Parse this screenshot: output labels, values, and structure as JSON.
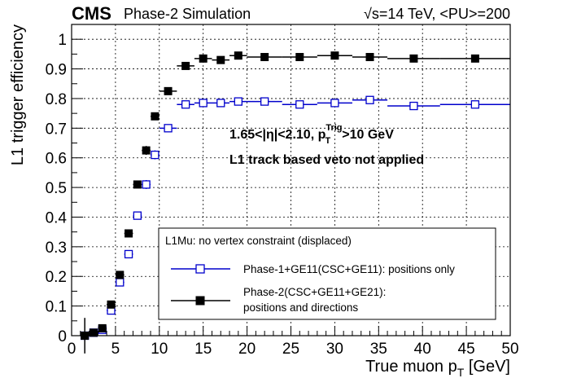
{
  "header": {
    "experiment": "CMS",
    "status": "Phase-2 Simulation",
    "energy": "√s=14 TeV, <PU>=200"
  },
  "annotations": {
    "line1_prefix": "1.65<|η|<2.10, p",
    "line1_sub": "T",
    "line1_sup": "Trig",
    "line1_suffix": ">10 GeV",
    "line2": "L1 track based veto not applied"
  },
  "legend": {
    "header": "L1Mu: no vertex constraint (displaced)",
    "entry1": "Phase-1+GE11(CSC+GE11): positions only",
    "entry2_line1": "Phase-2(CSC+GE11+GE21):",
    "entry2_line2": "positions and directions"
  },
  "chart_data": {
    "type": "scatter",
    "xlabel_main": "True muon p",
    "xlabel_sub": "T",
    "xlabel_unit": " [GeV]",
    "ylabel": "L1 trigger efficiency",
    "xlim": [
      0,
      50
    ],
    "ylim": [
      0,
      1.05
    ],
    "x_ticks": [
      0,
      5,
      10,
      15,
      20,
      25,
      30,
      35,
      40,
      45,
      50
    ],
    "y_ticks": [
      0,
      0.1,
      0.2,
      0.3,
      0.4,
      0.5,
      0.6,
      0.7,
      0.8,
      0.9,
      1
    ],
    "y_tick_labels": [
      "0",
      "0.1",
      "0.2",
      "0.3",
      "0.4",
      "0.5",
      "0.6",
      "0.7",
      "0.8",
      "0.9",
      "1"
    ],
    "grid": true,
    "legend_position": "bottom-right",
    "series": [
      {
        "name": "Phase-1+GE11(CSC+GE11): positions only",
        "color": "#0000cc",
        "marker": "open-square",
        "points": [
          {
            "x": 1.5,
            "y": 0.0,
            "xerr": 0.5,
            "yerr": 0.01
          },
          {
            "x": 2.5,
            "y": 0.01,
            "xerr": 0.5,
            "yerr": 0.01
          },
          {
            "x": 3.5,
            "y": 0.02,
            "xerr": 0.5,
            "yerr": 0.01
          },
          {
            "x": 4.5,
            "y": 0.085,
            "xerr": 0.5,
            "yerr": 0.01
          },
          {
            "x": 5.5,
            "y": 0.18,
            "xerr": 0.5,
            "yerr": 0.012
          },
          {
            "x": 6.5,
            "y": 0.275,
            "xerr": 0.5,
            "yerr": 0.012
          },
          {
            "x": 7.5,
            "y": 0.405,
            "xerr": 0.5,
            "yerr": 0.012
          },
          {
            "x": 8.5,
            "y": 0.51,
            "xerr": 0.5,
            "yerr": 0.015
          },
          {
            "x": 9.5,
            "y": 0.61,
            "xerr": 0.5,
            "yerr": 0.015
          },
          {
            "x": 11,
            "y": 0.7,
            "xerr": 1,
            "yerr": 0.01
          },
          {
            "x": 13,
            "y": 0.78,
            "xerr": 1,
            "yerr": 0.01
          },
          {
            "x": 15,
            "y": 0.785,
            "xerr": 1,
            "yerr": 0.01
          },
          {
            "x": 17,
            "y": 0.785,
            "xerr": 1,
            "yerr": 0.01
          },
          {
            "x": 19,
            "y": 0.79,
            "xerr": 1,
            "yerr": 0.01
          },
          {
            "x": 22,
            "y": 0.79,
            "xerr": 2,
            "yerr": 0.01
          },
          {
            "x": 26,
            "y": 0.78,
            "xerr": 2,
            "yerr": 0.01
          },
          {
            "x": 30,
            "y": 0.785,
            "xerr": 2,
            "yerr": 0.01
          },
          {
            "x": 34,
            "y": 0.795,
            "xerr": 2,
            "yerr": 0.01
          },
          {
            "x": 39,
            "y": 0.775,
            "xerr": 3,
            "yerr": 0.01
          },
          {
            "x": 46,
            "y": 0.78,
            "xerr": 4,
            "yerr": 0.01
          }
        ]
      },
      {
        "name": "Phase-2(CSC+GE11+GE21): positions and directions",
        "color": "#000000",
        "marker": "filled-square",
        "points": [
          {
            "x": 1.5,
            "y": 0.0,
            "xerr": 0.5,
            "yerr": 0.06
          },
          {
            "x": 2.5,
            "y": 0.01,
            "xerr": 0.5,
            "yerr": 0.01
          },
          {
            "x": 3.5,
            "y": 0.025,
            "xerr": 0.5,
            "yerr": 0.01
          },
          {
            "x": 4.5,
            "y": 0.105,
            "xerr": 0.5,
            "yerr": 0.01
          },
          {
            "x": 5.5,
            "y": 0.205,
            "xerr": 0.5,
            "yerr": 0.012
          },
          {
            "x": 6.5,
            "y": 0.345,
            "xerr": 0.5,
            "yerr": 0.012
          },
          {
            "x": 7.5,
            "y": 0.51,
            "xerr": 0.5,
            "yerr": 0.012
          },
          {
            "x": 8.5,
            "y": 0.625,
            "xerr": 0.5,
            "yerr": 0.015
          },
          {
            "x": 9.5,
            "y": 0.74,
            "xerr": 0.5,
            "yerr": 0.012
          },
          {
            "x": 11,
            "y": 0.825,
            "xerr": 1,
            "yerr": 0.01
          },
          {
            "x": 13,
            "y": 0.91,
            "xerr": 1,
            "yerr": 0.01
          },
          {
            "x": 15,
            "y": 0.935,
            "xerr": 1,
            "yerr": 0.01
          },
          {
            "x": 17,
            "y": 0.93,
            "xerr": 1,
            "yerr": 0.01
          },
          {
            "x": 19,
            "y": 0.945,
            "xerr": 1,
            "yerr": 0.01
          },
          {
            "x": 22,
            "y": 0.94,
            "xerr": 2,
            "yerr": 0.01
          },
          {
            "x": 26,
            "y": 0.94,
            "xerr": 2,
            "yerr": 0.01
          },
          {
            "x": 30,
            "y": 0.945,
            "xerr": 2,
            "yerr": 0.01
          },
          {
            "x": 34,
            "y": 0.94,
            "xerr": 2,
            "yerr": 0.01
          },
          {
            "x": 39,
            "y": 0.935,
            "xerr": 3,
            "yerr": 0.01
          },
          {
            "x": 46,
            "y": 0.935,
            "xerr": 4,
            "yerr": 0.01
          }
        ]
      }
    ]
  }
}
